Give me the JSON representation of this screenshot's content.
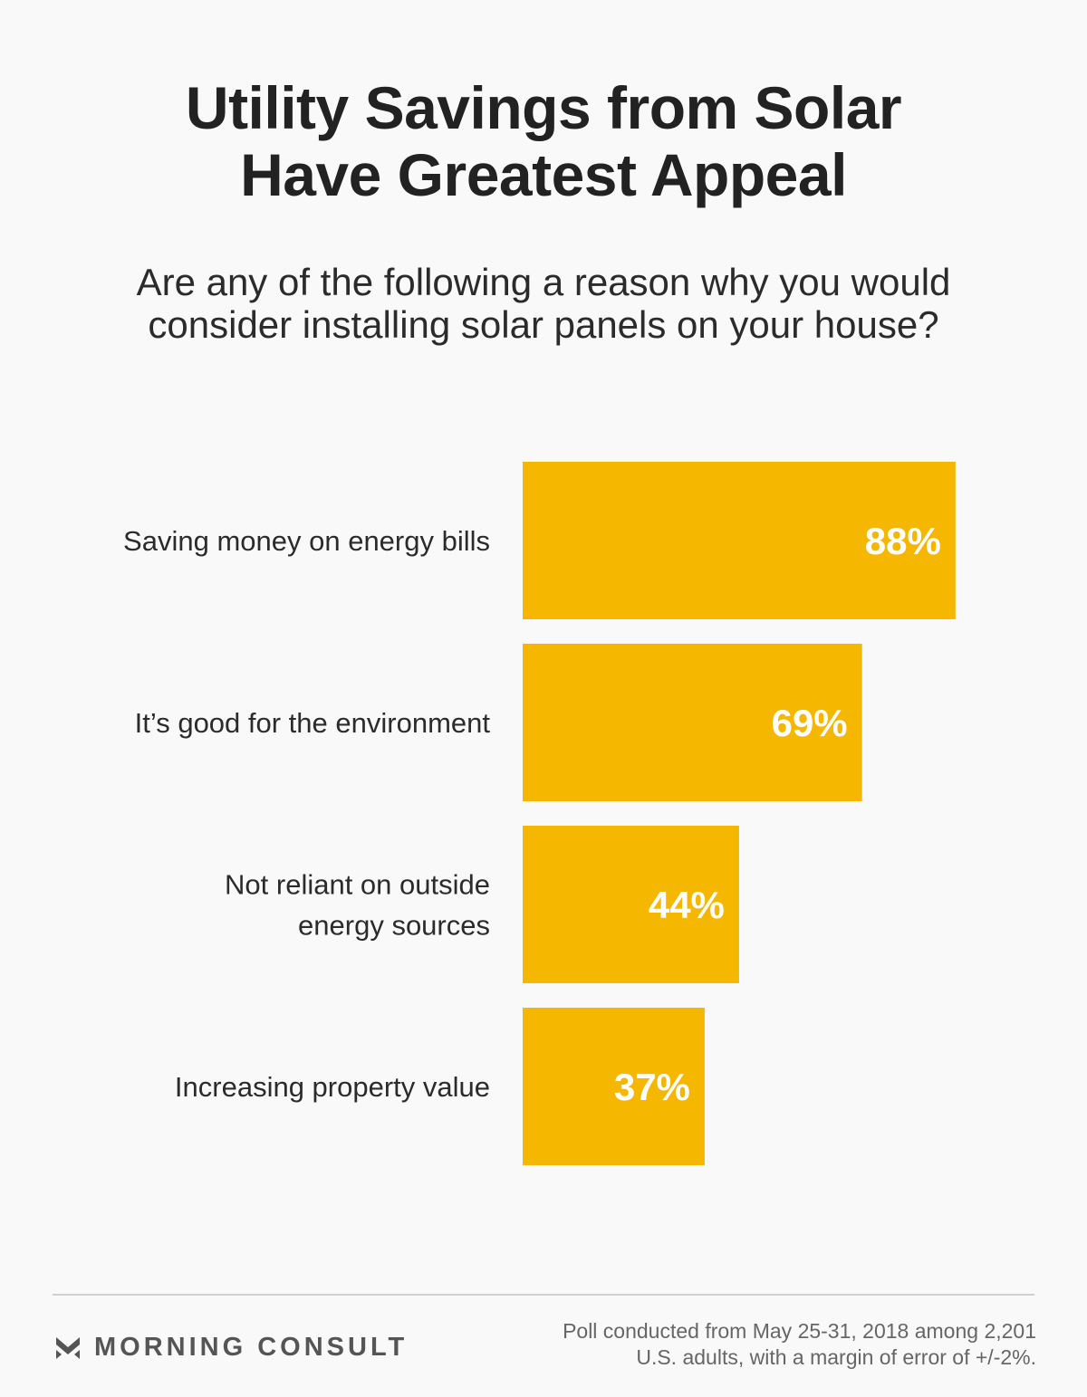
{
  "title": {
    "line1": "Utility Savings from Solar",
    "line2": "Have Greatest Appeal"
  },
  "subtitle": {
    "line1": "Are any of the following a reason why you would",
    "line2": "consider installing solar panels on your house?"
  },
  "colors": {
    "bar": "#f5b700",
    "value_text": "#ffffff",
    "background": "#f9f9f9"
  },
  "chart_data": {
    "type": "bar",
    "orientation": "horizontal",
    "categories": [
      [
        "Saving money on energy bills"
      ],
      [
        "It’s good for the environment"
      ],
      [
        "Not reliant on outside",
        "energy sources"
      ],
      [
        "Increasing property value"
      ]
    ],
    "values": [
      88,
      69,
      44,
      37
    ],
    "value_labels": [
      "88%",
      "69%",
      "44%",
      "37%"
    ],
    "xlim": [
      0,
      100
    ],
    "grid": false,
    "legend": "none"
  },
  "footer": {
    "brand": "MORNING CONSULT",
    "brand_icon": "morning-consult-logo-icon",
    "note_line1": "Poll conducted from May 25-31, 2018 among 2,201",
    "note_line2": "U.S. adults, with a margin of error of +/-2%."
  }
}
